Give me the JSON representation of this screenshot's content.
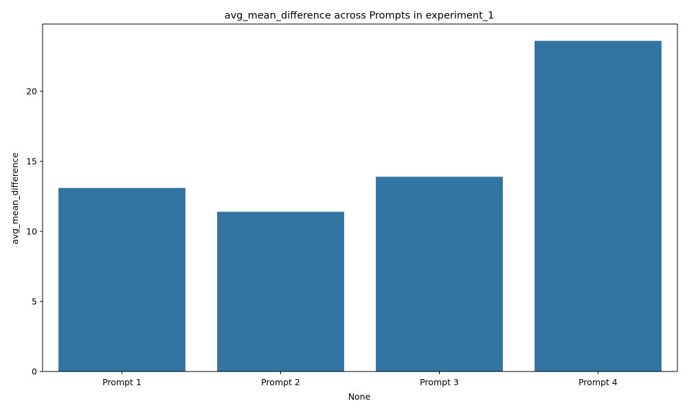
{
  "chart_data": {
    "type": "bar",
    "title": "avg_mean_difference across Prompts in experiment_1",
    "xlabel": "None",
    "ylabel": "avg_mean_difference",
    "categories": [
      "Prompt 1",
      "Prompt 2",
      "Prompt 3",
      "Prompt 4"
    ],
    "values": [
      13.1,
      11.4,
      13.9,
      23.6
    ],
    "ylim": [
      0,
      24.8
    ],
    "yticks": [
      0,
      5,
      10,
      15,
      20
    ],
    "grid": false,
    "bar_color": "#3274a1"
  }
}
